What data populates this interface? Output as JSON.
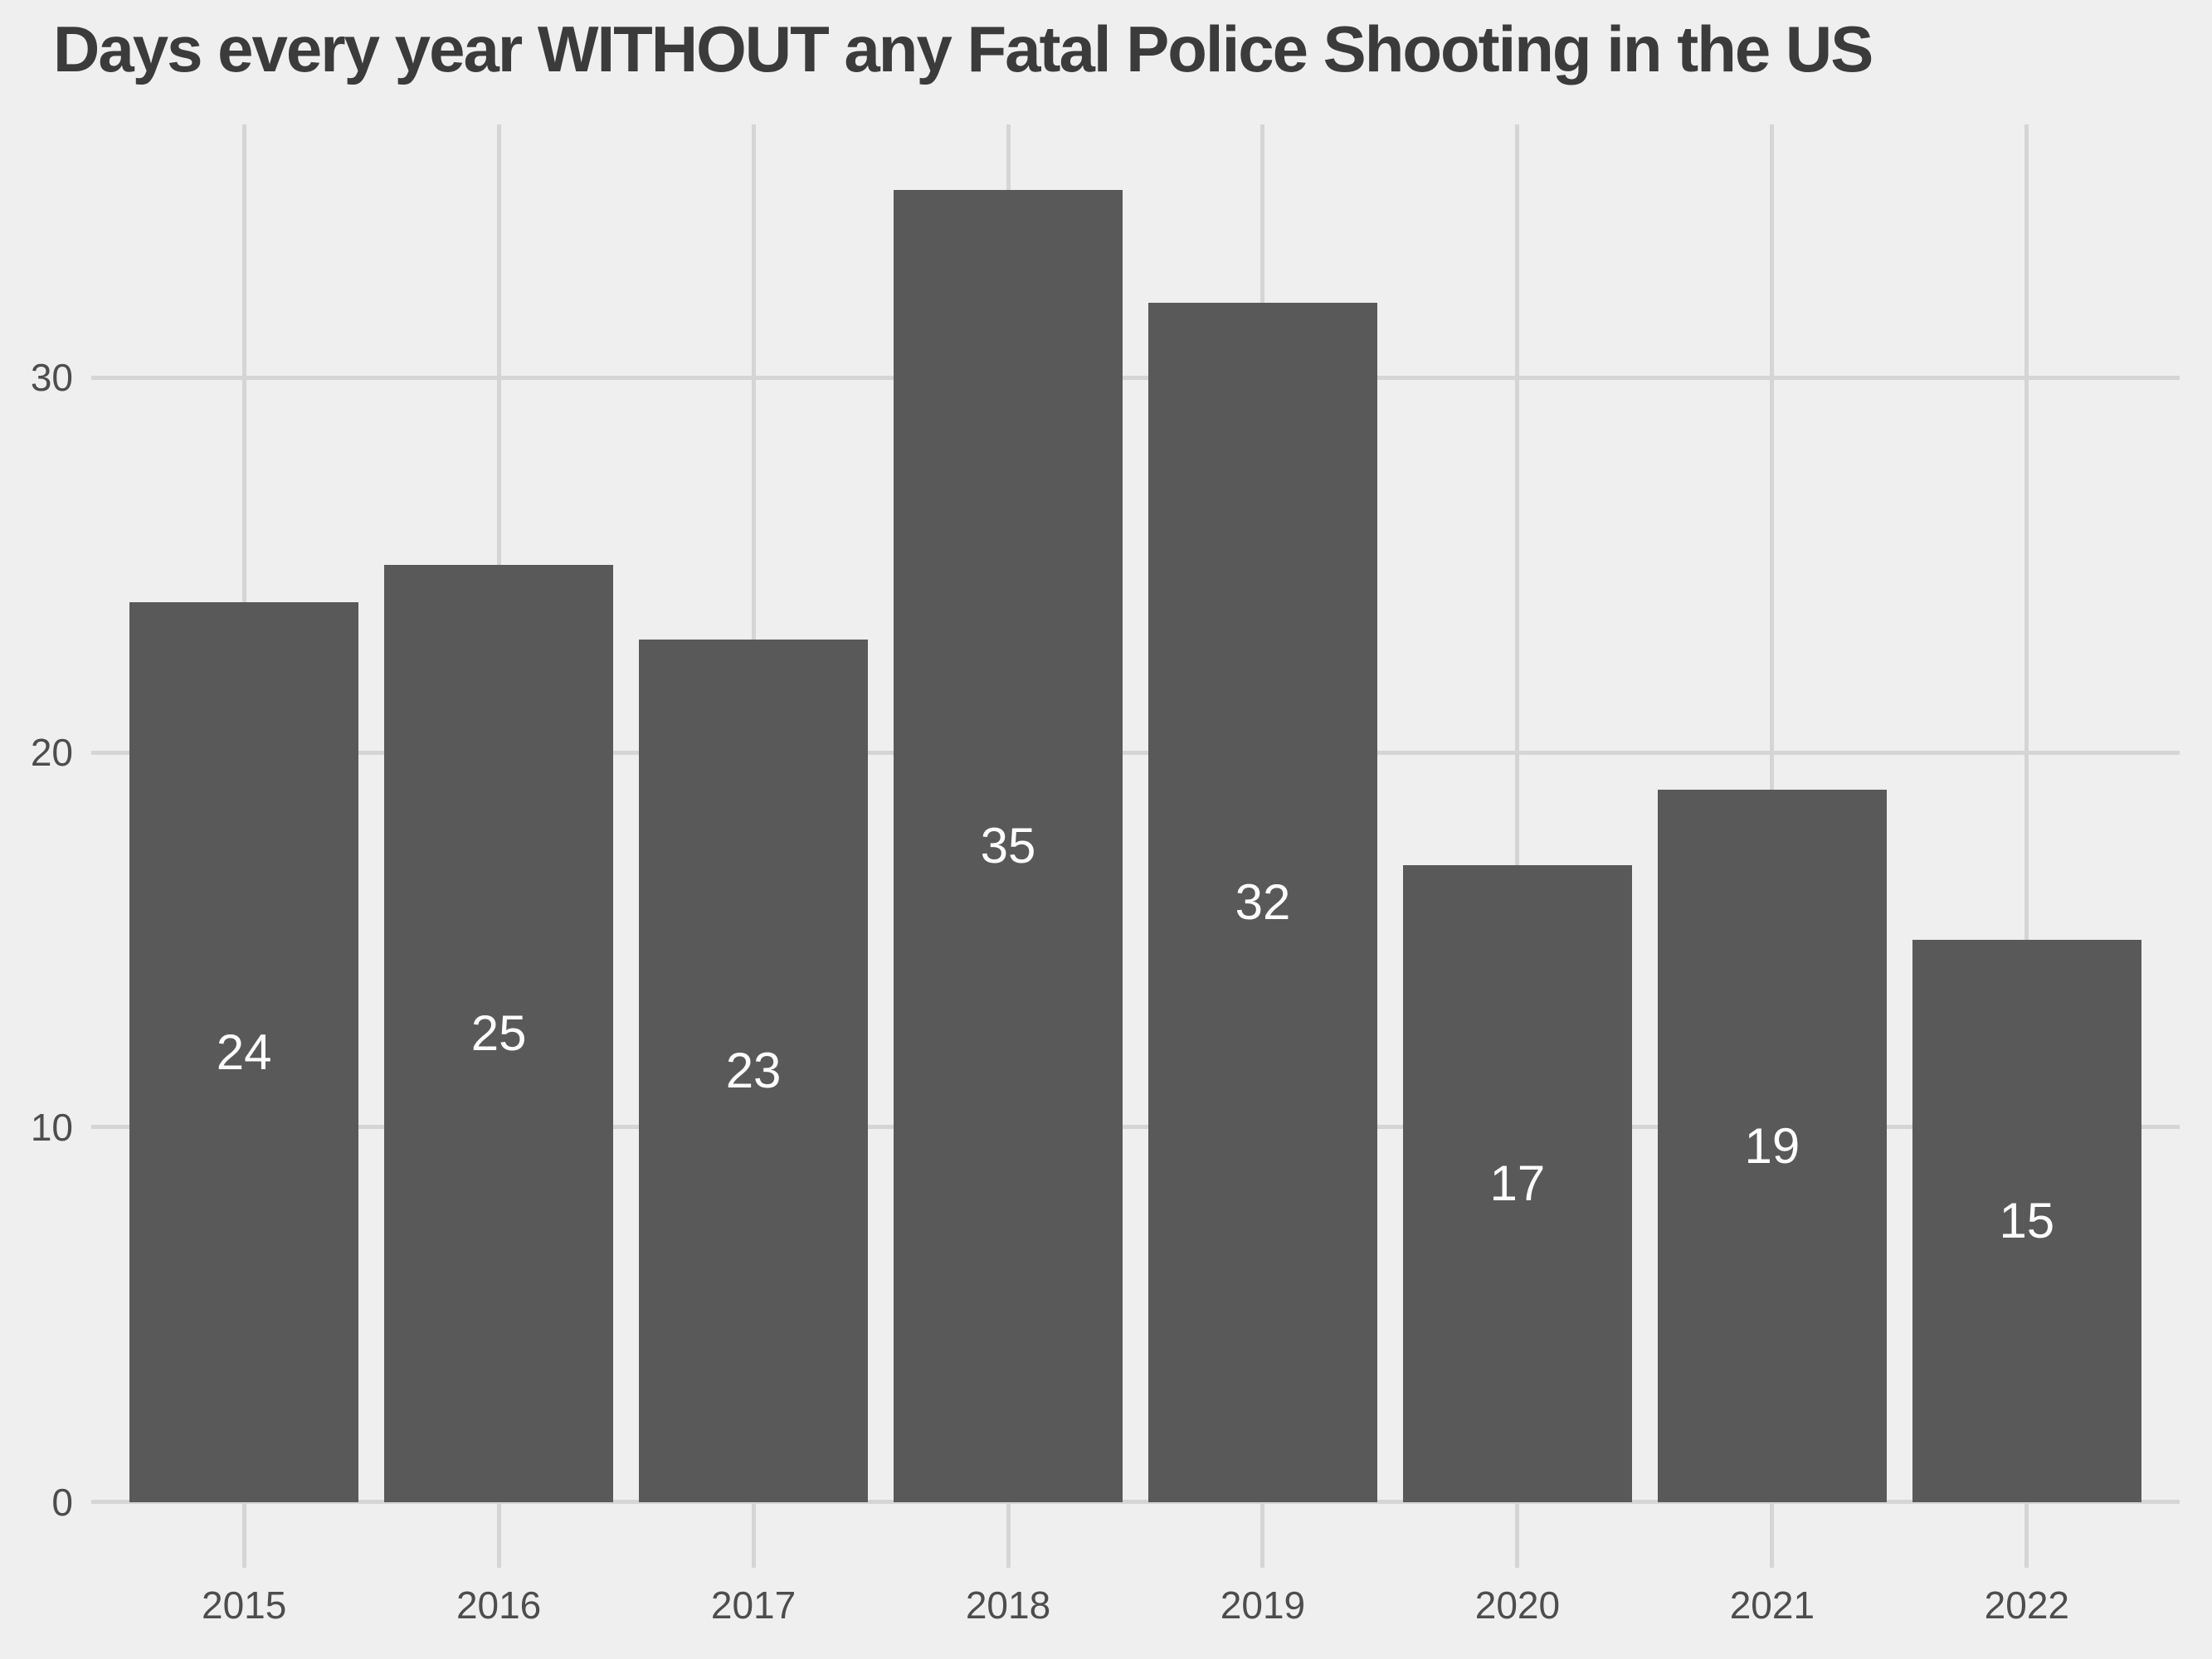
{
  "title": "Days every year WITHOUT any Fatal Police Shooting in the US",
  "colors": {
    "background": "#EFEFEF",
    "gridline": "#D5D5D5",
    "bar": "#595959",
    "title": "#3B3B3B",
    "axis_text": "#4D4D4D",
    "bar_label": "#FFFFFF"
  },
  "chart_data": {
    "type": "bar",
    "title": "Days every year WITHOUT any Fatal Police Shooting in the US",
    "categories": [
      "2015",
      "2016",
      "2017",
      "2018",
      "2019",
      "2020",
      "2021",
      "2022"
    ],
    "values": [
      24,
      25,
      23,
      35,
      32,
      17,
      19,
      15
    ],
    "xlabel": "",
    "ylabel": "",
    "yticks": [
      0,
      10,
      20,
      30
    ],
    "ylim": [
      -1.75,
      36.75
    ],
    "bar_width_fraction": 0.9,
    "grid": "major horizontal gridlines at yticks and vertical gridlines at each category center, drawn behind bars",
    "legend": "none",
    "annotations": "each bar shows its value in white text centered at the bar's vertical midpoint"
  }
}
